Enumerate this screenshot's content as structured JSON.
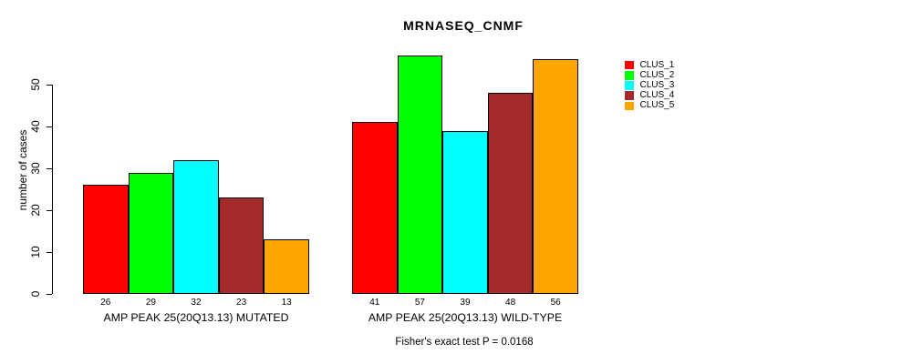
{
  "chart": {
    "title": "MRNASEQ_CNMF",
    "y_axis_title": "number of cases",
    "footnote": "Fisher's exact test P = 0.0168"
  },
  "chart_data": {
    "type": "bar",
    "title": "MRNASEQ_CNMF",
    "xlabel": "",
    "ylabel": "number of cases",
    "categories": [
      "AMP PEAK 25(20Q13.13) MUTATED",
      "AMP PEAK 25(20Q13.13) WILD-TYPE"
    ],
    "series": [
      {
        "name": "CLUS_1",
        "color": "#ff0000",
        "values": [
          26,
          41
        ]
      },
      {
        "name": "CLUS_2",
        "color": "#00ff00",
        "values": [
          29,
          57
        ]
      },
      {
        "name": "CLUS_3",
        "color": "#00ffff",
        "values": [
          32,
          39
        ]
      },
      {
        "name": "CLUS_4",
        "color": "#a52a2a",
        "values": [
          23,
          48
        ]
      },
      {
        "name": "CLUS_5",
        "color": "#ffa500",
        "values": [
          13,
          56
        ]
      }
    ],
    "bar_value_labels": [
      [
        26,
        29,
        32,
        23,
        13
      ],
      [
        41,
        57,
        39,
        48,
        56
      ]
    ],
    "y_ticks": [
      0,
      10,
      20,
      30,
      40,
      50
    ],
    "ylim": [
      0,
      57.5
    ],
    "grid": false,
    "legend_entries": [
      "CLUS_1",
      "CLUS_2",
      "CLUS_3",
      "CLUS_4",
      "CLUS_5"
    ],
    "legend_position": "right",
    "annotation": "Fisher's exact test P = 0.0168",
    "bar_border_color": "#000000",
    "background_color": "#ffffff",
    "text_color": "#000000"
  }
}
